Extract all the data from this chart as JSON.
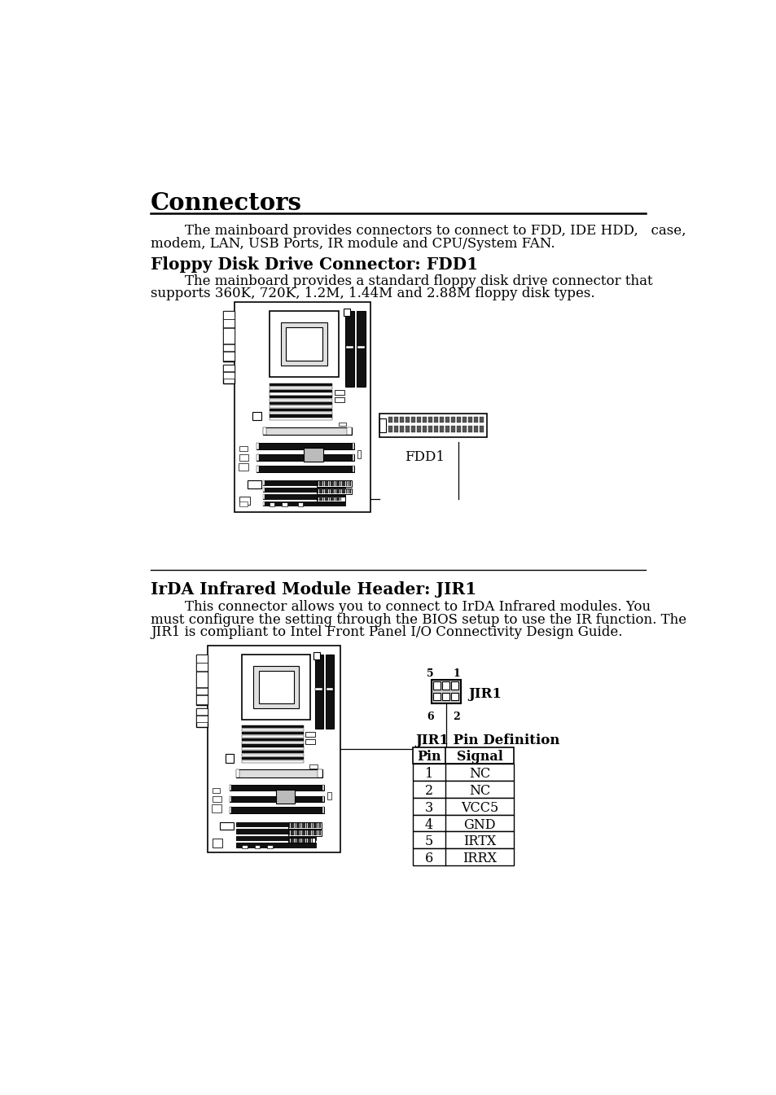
{
  "title": "Connectors",
  "section1_title": "Floppy Disk Drive Connector: FDD1",
  "section1_body_line1": "        The mainboard provides a standard floppy disk drive connector that",
  "section1_body_line2": "supports 360K, 720K, 1.2M, 1.44M and 2.88M floppy disk types.",
  "section2_title": "IrDA Infrared Module Header: JIR1",
  "section2_body_line1": "        This connector allows you to connect to IrDA Infrared modules. You",
  "section2_body_line2": "must configure the setting through the BIOS setup to use the IR function. The",
  "section2_body_line3": "JIR1 is compliant to Intel Front Panel I/O Connectivity Design Guide.",
  "intro_line1": "        The mainboard provides connectors to connect to FDD, IDE HDD,   case,",
  "intro_line2": "modem, LAN, USB Ports, IR module and CPU/System FAN.",
  "fdd1_label": "FDD1",
  "jir1_label": "JIR1",
  "table_title": "JIR1 Pin Definition",
  "table_headers": [
    "Pin",
    "Signal"
  ],
  "table_data": [
    [
      "1",
      "NC"
    ],
    [
      "2",
      "NC"
    ],
    [
      "3",
      "VCC5"
    ],
    [
      "4",
      "GND"
    ],
    [
      "5",
      "IRTX"
    ],
    [
      "6",
      "IRRX"
    ]
  ],
  "bg_color": "#ffffff",
  "text_color": "#000000"
}
